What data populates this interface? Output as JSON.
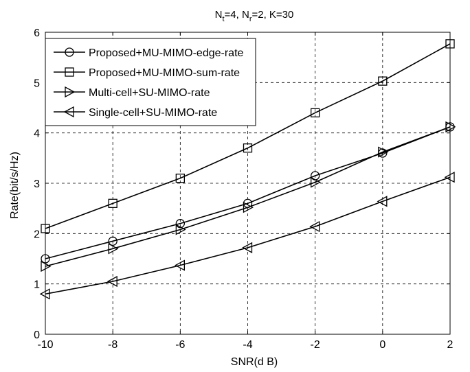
{
  "chart_data": {
    "type": "line",
    "title": {
      "pre": "N",
      "sub1": "t",
      "mid": "=4, N",
      "sub2": "r",
      "post": "=2, K=30"
    },
    "xlabel": "SNR(d B)",
    "ylabel": "Rate(bit/s/Hz)",
    "x": [
      -10,
      -8,
      -6,
      -4,
      -2,
      0,
      2
    ],
    "xlim": [
      -10,
      2
    ],
    "ylim": [
      0,
      6
    ],
    "xticks": [
      "-10",
      "-8",
      "-6",
      "-4",
      "-2",
      "0",
      "2"
    ],
    "yticks": [
      "0",
      "1",
      "2",
      "3",
      "4",
      "5",
      "6"
    ],
    "grid": true,
    "legend_position": "top-left",
    "series": [
      {
        "name": "Proposed+MU-MIMO-edge-rate",
        "marker": "circle",
        "values": [
          1.5,
          1.85,
          2.2,
          2.6,
          3.15,
          3.6,
          4.12
        ]
      },
      {
        "name": "Proposed+MU-MIMO-sum-rate",
        "marker": "square",
        "values": [
          2.1,
          2.6,
          3.1,
          3.7,
          4.4,
          5.03,
          5.77
        ]
      },
      {
        "name": "Multi-cell+SU-MIMO-rate",
        "marker": "triangle-right",
        "values": [
          1.35,
          1.7,
          2.08,
          2.52,
          3.02,
          3.62,
          4.12
        ]
      },
      {
        "name": "Single-cell+SU-MIMO-rate",
        "marker": "triangle-left",
        "values": [
          0.8,
          1.05,
          1.37,
          1.72,
          2.14,
          2.64,
          3.12
        ]
      }
    ]
  }
}
